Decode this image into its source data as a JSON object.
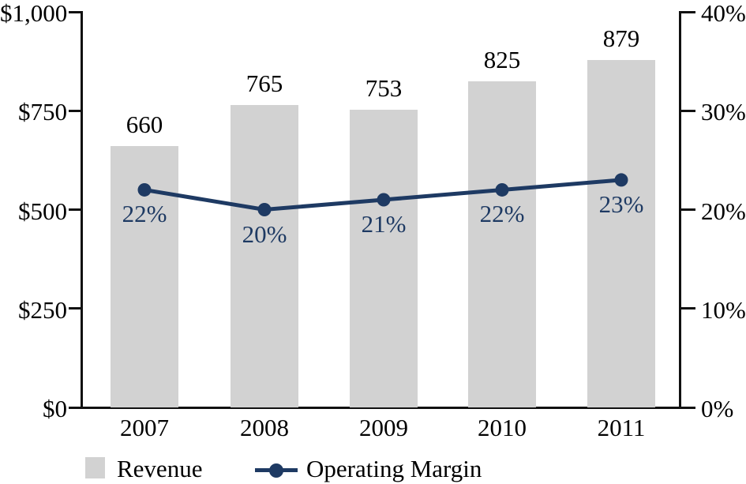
{
  "chart_data": {
    "type": "bar+line",
    "categories": [
      "2007",
      "2008",
      "2009",
      "2010",
      "2011"
    ],
    "series": [
      {
        "name": "Revenue",
        "type": "bar",
        "axis": "left",
        "values": [
          660,
          765,
          753,
          825,
          879
        ],
        "data_labels": [
          "660",
          "765",
          "753",
          "825",
          "879"
        ],
        "color": "#d2d2d2"
      },
      {
        "name": "Operating Margin",
        "type": "line",
        "axis": "right",
        "values": [
          22,
          20,
          21,
          22,
          23
        ],
        "data_labels": [
          "22%",
          "20%",
          "21%",
          "22%",
          "23%"
        ],
        "color": "#1e3a63"
      }
    ],
    "left_axis": {
      "tick_labels": [
        "$1,000",
        "$750",
        "$500",
        "$250",
        "$0"
      ],
      "min": 0,
      "max": 1000
    },
    "right_axis": {
      "tick_labels": [
        "40%",
        "30%",
        "20%",
        "10%",
        "0%"
      ],
      "min": 0,
      "max": 40
    },
    "grid": false,
    "legend_position": "bottom",
    "title": "",
    "xlabel": "",
    "ylabel": ""
  },
  "colors": {
    "bar_fill": "#d2d2d2",
    "line_stroke": "#1e3a63",
    "axis_stroke": "#111111",
    "label_text": "#000000",
    "pct_label_text": "#1e3a63",
    "background": "#ffffff"
  },
  "legend": {
    "revenue_label": "Revenue",
    "operating_margin_label": "Operating Margin"
  }
}
